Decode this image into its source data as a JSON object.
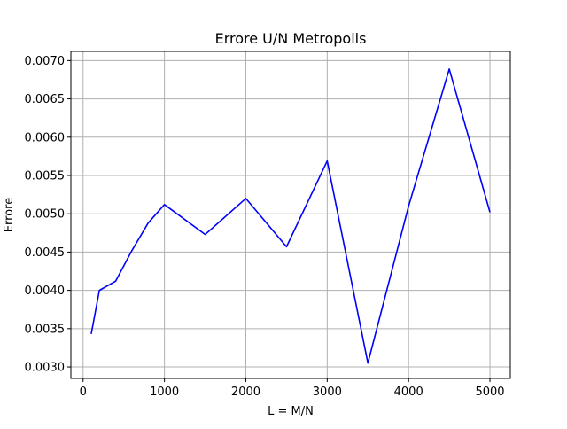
{
  "chart_data": {
    "type": "line",
    "title": "Errore U/N Metropolis",
    "xlabel": "L = M/N",
    "ylabel": "Errore",
    "xlim": [
      -150,
      5250
    ],
    "ylim": [
      0.00285,
      0.00712
    ],
    "xticks": [
      0,
      1000,
      2000,
      3000,
      4000,
      5000
    ],
    "xtick_labels": [
      "0",
      "1000",
      "2000",
      "3000",
      "4000",
      "5000"
    ],
    "yticks": [
      0.003,
      0.0035,
      0.004,
      0.0045,
      0.005,
      0.0055,
      0.006,
      0.0065,
      0.007
    ],
    "ytick_labels": [
      "0.0030",
      "0.0035",
      "0.0040",
      "0.0045",
      "0.0050",
      "0.0055",
      "0.0060",
      "0.0065",
      "0.0070"
    ],
    "grid": true,
    "line_color": "#0000ff",
    "series": [
      {
        "x": [
          100,
          200,
          400,
          600,
          800,
          1000,
          1500,
          2000,
          2500,
          3000,
          3500,
          4000,
          4500,
          5000
        ],
        "y": [
          0.00343,
          0.004,
          0.00412,
          0.00452,
          0.00488,
          0.00512,
          0.00473,
          0.0052,
          0.00457,
          0.00569,
          0.00305,
          0.0051,
          0.00689,
          0.00502
        ]
      }
    ]
  }
}
